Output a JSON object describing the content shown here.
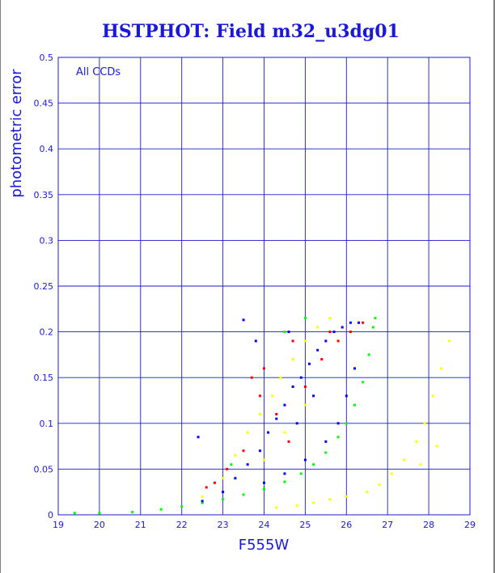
{
  "chart_data": {
    "type": "scatter",
    "title": "HSTPHOT: Field m32_u3dg01",
    "xlabel": "F555W",
    "ylabel": "photometric error",
    "annotation": "All CCDs",
    "xlim": [
      19,
      29
    ],
    "ylim": [
      0,
      0.5
    ],
    "x_ticks": [
      "19",
      "20",
      "21",
      "22",
      "23",
      "24",
      "25",
      "26",
      "27",
      "28",
      "29"
    ],
    "y_ticks": [
      "0",
      "0.05",
      "0.1",
      "0.15",
      "0.2",
      "0.25",
      "0.3",
      "0.35",
      "0.4",
      "0.45",
      "0.5"
    ],
    "grid": true,
    "series": [
      {
        "color": "#00ff00",
        "points": [
          [
            19.4,
            0.002
          ],
          [
            20.0,
            0.002
          ],
          [
            20.8,
            0.003
          ],
          [
            21.5,
            0.006
          ],
          [
            22.0,
            0.009
          ],
          [
            22.5,
            0.013
          ],
          [
            23.0,
            0.017
          ],
          [
            23.5,
            0.022
          ],
          [
            24.0,
            0.028
          ],
          [
            24.5,
            0.036
          ],
          [
            24.9,
            0.045
          ],
          [
            25.2,
            0.055
          ],
          [
            25.5,
            0.068
          ],
          [
            25.8,
            0.085
          ],
          [
            26.0,
            0.1
          ],
          [
            26.2,
            0.12
          ],
          [
            26.4,
            0.145
          ],
          [
            26.55,
            0.175
          ],
          [
            26.65,
            0.205
          ],
          [
            26.7,
            0.215
          ],
          [
            25.0,
            0.215
          ],
          [
            24.5,
            0.2
          ],
          [
            23.2,
            0.055
          ]
        ]
      },
      {
        "color": "#0000ff",
        "points": [
          [
            22.5,
            0.015
          ],
          [
            23.0,
            0.025
          ],
          [
            23.3,
            0.04
          ],
          [
            23.6,
            0.055
          ],
          [
            23.9,
            0.07
          ],
          [
            24.1,
            0.09
          ],
          [
            24.3,
            0.105
          ],
          [
            24.5,
            0.12
          ],
          [
            24.7,
            0.14
          ],
          [
            24.9,
            0.15
          ],
          [
            25.1,
            0.165
          ],
          [
            25.3,
            0.18
          ],
          [
            25.5,
            0.19
          ],
          [
            25.7,
            0.2
          ],
          [
            25.9,
            0.205
          ],
          [
            26.1,
            0.21
          ],
          [
            26.3,
            0.21
          ],
          [
            24.0,
            0.035
          ],
          [
            24.5,
            0.045
          ],
          [
            25.0,
            0.06
          ],
          [
            25.5,
            0.08
          ],
          [
            25.8,
            0.1
          ],
          [
            26.0,
            0.13
          ],
          [
            26.2,
            0.16
          ],
          [
            24.8,
            0.1
          ],
          [
            25.2,
            0.13
          ],
          [
            23.5,
            0.213
          ],
          [
            23.8,
            0.19
          ],
          [
            22.4,
            0.085
          ],
          [
            24.6,
            0.2
          ]
        ]
      },
      {
        "color": "#ffff00",
        "points": [
          [
            22.5,
            0.02
          ],
          [
            23.0,
            0.04
          ],
          [
            23.3,
            0.065
          ],
          [
            23.6,
            0.09
          ],
          [
            23.9,
            0.11
          ],
          [
            24.2,
            0.13
          ],
          [
            24.4,
            0.15
          ],
          [
            24.7,
            0.17
          ],
          [
            25.0,
            0.19
          ],
          [
            25.3,
            0.205
          ],
          [
            25.6,
            0.215
          ],
          [
            24.0,
            0.06
          ],
          [
            24.5,
            0.09
          ],
          [
            25.0,
            0.12
          ],
          [
            24.3,
            0.008
          ],
          [
            24.8,
            0.01
          ],
          [
            25.2,
            0.013
          ],
          [
            25.6,
            0.017
          ],
          [
            26.0,
            0.02
          ],
          [
            26.5,
            0.025
          ],
          [
            26.8,
            0.033
          ],
          [
            27.1,
            0.045
          ],
          [
            27.4,
            0.06
          ],
          [
            27.7,
            0.08
          ],
          [
            27.9,
            0.1
          ],
          [
            28.1,
            0.13
          ],
          [
            28.3,
            0.16
          ],
          [
            28.5,
            0.19
          ],
          [
            27.8,
            0.055
          ],
          [
            28.2,
            0.075
          ]
        ]
      },
      {
        "color": "#ff0000",
        "points": [
          [
            22.6,
            0.03
          ],
          [
            23.1,
            0.05
          ],
          [
            23.5,
            0.07
          ],
          [
            23.9,
            0.13
          ],
          [
            24.0,
            0.16
          ],
          [
            24.3,
            0.11
          ],
          [
            24.6,
            0.08
          ],
          [
            25.0,
            0.14
          ],
          [
            25.4,
            0.17
          ],
          [
            25.8,
            0.19
          ],
          [
            26.1,
            0.2
          ],
          [
            26.4,
            0.21
          ],
          [
            24.7,
            0.19
          ],
          [
            22.8,
            0.035
          ],
          [
            23.7,
            0.15
          ],
          [
            25.6,
            0.2
          ]
        ]
      }
    ]
  }
}
